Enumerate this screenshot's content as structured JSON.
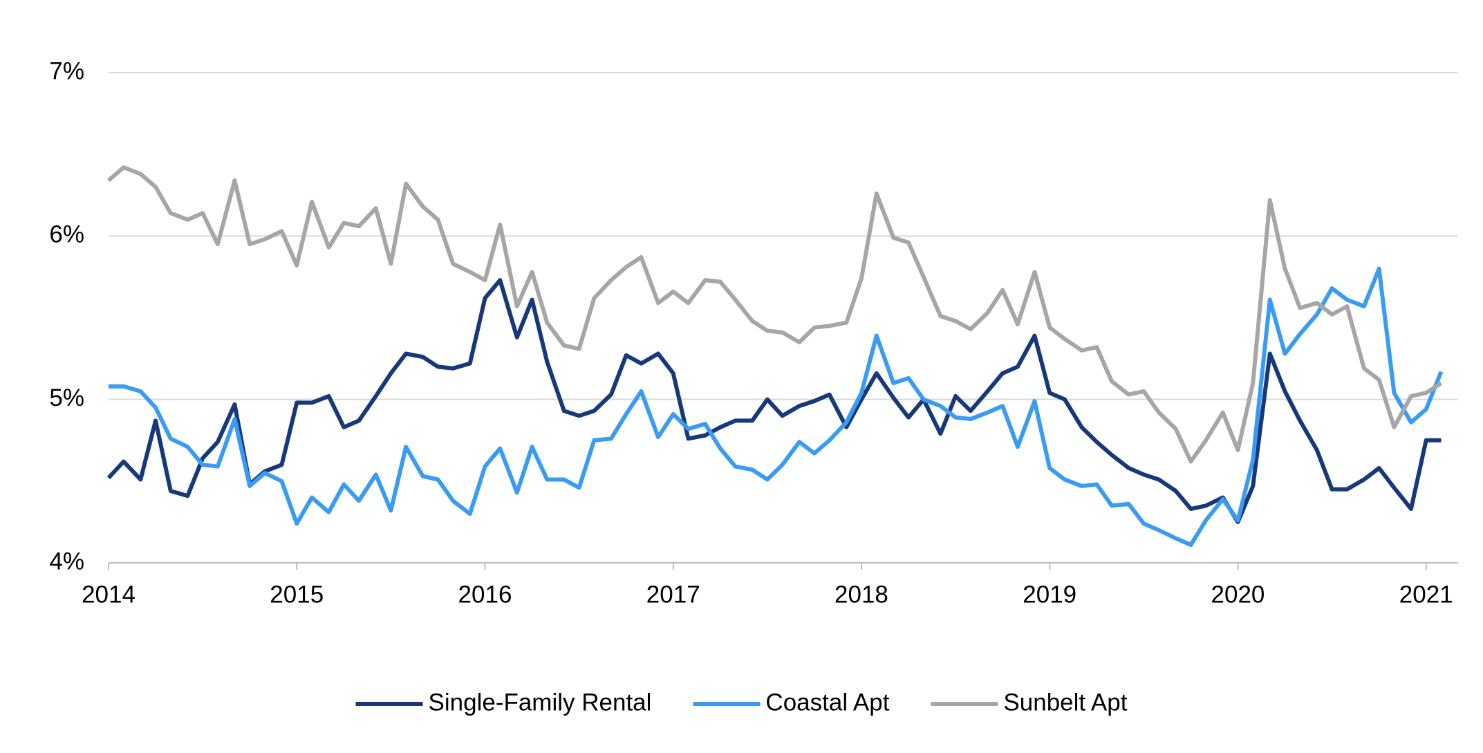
{
  "chart_data": {
    "type": "line",
    "x": [
      2014,
      2014.08,
      2014.17,
      2014.25,
      2014.33,
      2014.42,
      2014.5,
      2014.58,
      2014.67,
      2014.75,
      2014.83,
      2014.92,
      2015,
      2015.08,
      2015.17,
      2015.25,
      2015.33,
      2015.42,
      2015.5,
      2015.58,
      2015.67,
      2015.75,
      2015.83,
      2015.92,
      2016,
      2016.08,
      2016.17,
      2016.25,
      2016.33,
      2016.42,
      2016.5,
      2016.58,
      2016.67,
      2016.75,
      2016.83,
      2016.92,
      2017,
      2017.08,
      2017.17,
      2017.25,
      2017.33,
      2017.42,
      2017.5,
      2017.58,
      2017.67,
      2017.75,
      2017.83,
      2017.92,
      2018,
      2018.08,
      2018.17,
      2018.25,
      2018.33,
      2018.42,
      2018.5,
      2018.58,
      2018.67,
      2018.75,
      2018.83,
      2018.92,
      2019,
      2019.08,
      2019.17,
      2019.25,
      2019.33,
      2019.42,
      2019.5,
      2019.58,
      2019.67,
      2019.75,
      2019.83,
      2019.92,
      2020,
      2020.08,
      2020.17,
      2020.25,
      2020.33,
      2020.42,
      2020.5,
      2020.58,
      2020.67,
      2020.75,
      2020.83,
      2020.92,
      2021,
      2021.08
    ],
    "series": [
      {
        "name": "Single-Family Rental",
        "color": "#17397a",
        "values": [
          4.52,
          4.62,
          4.51,
          4.87,
          4.44,
          4.41,
          4.64,
          4.74,
          4.97,
          4.48,
          4.56,
          4.6,
          4.98,
          4.98,
          5.02,
          4.83,
          4.87,
          5.02,
          5.16,
          5.28,
          5.26,
          5.2,
          5.19,
          5.22,
          5.62,
          5.73,
          5.38,
          5.61,
          5.23,
          4.93,
          4.9,
          4.93,
          5.03,
          5.27,
          5.22,
          5.28,
          5.16,
          4.76,
          4.78,
          4.83,
          4.87,
          4.87,
          5.0,
          4.9,
          4.96,
          4.99,
          5.03,
          4.83,
          5.0,
          5.16,
          5.01,
          4.89,
          5.0,
          4.79,
          5.02,
          4.93,
          5.05,
          5.16,
          5.2,
          5.39,
          5.04,
          5.0,
          4.83,
          4.74,
          4.66,
          4.58,
          4.54,
          4.51,
          4.44,
          4.33,
          4.35,
          4.4,
          4.25,
          4.47,
          5.28,
          5.05,
          4.87,
          4.69,
          4.45,
          4.45,
          4.51,
          4.58,
          4.46,
          4.33,
          4.75,
          4.75
        ]
      },
      {
        "name": "Coastal Apt",
        "color": "#3a9bf4",
        "values": [
          5.08,
          5.08,
          5.05,
          4.95,
          4.76,
          4.71,
          4.6,
          4.59,
          4.88,
          4.47,
          4.55,
          4.5,
          4.24,
          4.4,
          4.31,
          4.48,
          4.38,
          4.54,
          4.32,
          4.71,
          4.53,
          4.51,
          4.38,
          4.3,
          4.59,
          4.7,
          4.43,
          4.71,
          4.51,
          4.51,
          4.46,
          4.75,
          4.76,
          4.91,
          5.05,
          4.77,
          4.91,
          4.82,
          4.85,
          4.7,
          4.59,
          4.57,
          4.51,
          4.6,
          4.74,
          4.67,
          4.75,
          4.86,
          5.04,
          5.39,
          5.1,
          5.13,
          5.0,
          4.96,
          4.89,
          4.88,
          4.92,
          4.96,
          4.71,
          4.99,
          4.58,
          4.51,
          4.47,
          4.48,
          4.35,
          4.36,
          4.24,
          4.2,
          4.15,
          4.11,
          4.26,
          4.39,
          4.26,
          4.63,
          5.61,
          5.28,
          5.4,
          5.52,
          5.68,
          5.61,
          5.57,
          5.8,
          5.04,
          4.86,
          4.94,
          5.17
        ]
      },
      {
        "name": "Sunbelt Apt",
        "color": "#a6a6a6",
        "values": [
          6.34,
          6.42,
          6.38,
          6.3,
          6.14,
          6.1,
          6.14,
          5.95,
          6.34,
          5.95,
          5.98,
          6.03,
          5.82,
          6.21,
          5.93,
          6.08,
          6.06,
          6.17,
          5.83,
          6.32,
          6.18,
          6.1,
          5.83,
          5.78,
          5.73,
          6.07,
          5.57,
          5.78,
          5.47,
          5.33,
          5.31,
          5.62,
          5.73,
          5.81,
          5.87,
          5.59,
          5.66,
          5.59,
          5.73,
          5.72,
          5.61,
          5.48,
          5.42,
          5.41,
          5.35,
          5.44,
          5.45,
          5.47,
          5.74,
          6.26,
          5.99,
          5.96,
          5.75,
          5.51,
          5.48,
          5.43,
          5.53,
          5.67,
          5.46,
          5.78,
          5.44,
          5.37,
          5.3,
          5.32,
          5.11,
          5.03,
          5.05,
          4.92,
          4.82,
          4.62,
          4.75,
          4.92,
          4.69,
          5.1,
          6.22,
          5.8,
          5.56,
          5.59,
          5.52,
          5.57,
          5.19,
          5.12,
          4.83,
          5.02,
          5.04,
          5.1
        ]
      }
    ],
    "xlim": [
      2014,
      2021.17
    ],
    "xticks": [
      2014,
      2015,
      2016,
      2017,
      2018,
      2019,
      2020,
      2021
    ],
    "ylim": [
      4,
      7
    ],
    "yticks": [
      {
        "value": 4,
        "label": "4%"
      },
      {
        "value": 5,
        "label": "5%"
      },
      {
        "value": 6,
        "label": "6%"
      },
      {
        "value": 7,
        "label": "7%"
      }
    ],
    "grid": true,
    "legend": "bottom"
  }
}
